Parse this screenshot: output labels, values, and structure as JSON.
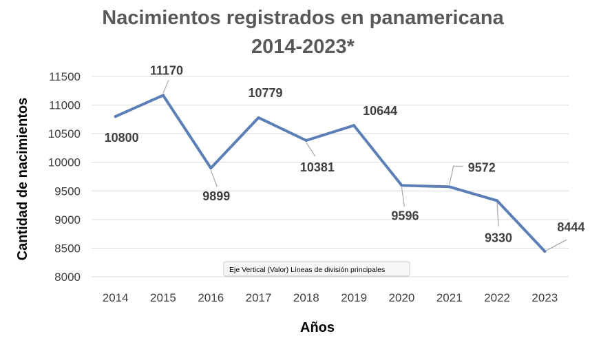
{
  "chart_data": {
    "type": "line",
    "title_lines": [
      "Nacimientos registrados en panamericana",
      "2014-2023*"
    ],
    "xlabel": "Años",
    "ylabel": "Cantidad de nacimientos",
    "categories": [
      "2014",
      "2015",
      "2016",
      "2017",
      "2018",
      "2019",
      "2020",
      "2021",
      "2022",
      "2023"
    ],
    "series": [
      {
        "values": [
          10800,
          11170,
          9899,
          10779,
          10381,
          10644,
          9596,
          9572,
          9330,
          8444
        ]
      }
    ],
    "data_labels": [
      "10800",
      "11170",
      "9899",
      "10779",
      "10381",
      "10644",
      "9596",
      "9572",
      "9330",
      "8444"
    ],
    "yticks": [
      8000,
      8500,
      9000,
      9500,
      10000,
      10500,
      11000,
      11500
    ],
    "ytick_labels": [
      "8000",
      "8500",
      "9000",
      "9500",
      "10000",
      "10500",
      "11000",
      "11500"
    ],
    "ylim": [
      8000,
      11500
    ],
    "grid": true,
    "legend": "none",
    "line_color": "#5b7fb6",
    "tooltip": "Eje Vertical (Valor)  Líneas de división principales"
  }
}
